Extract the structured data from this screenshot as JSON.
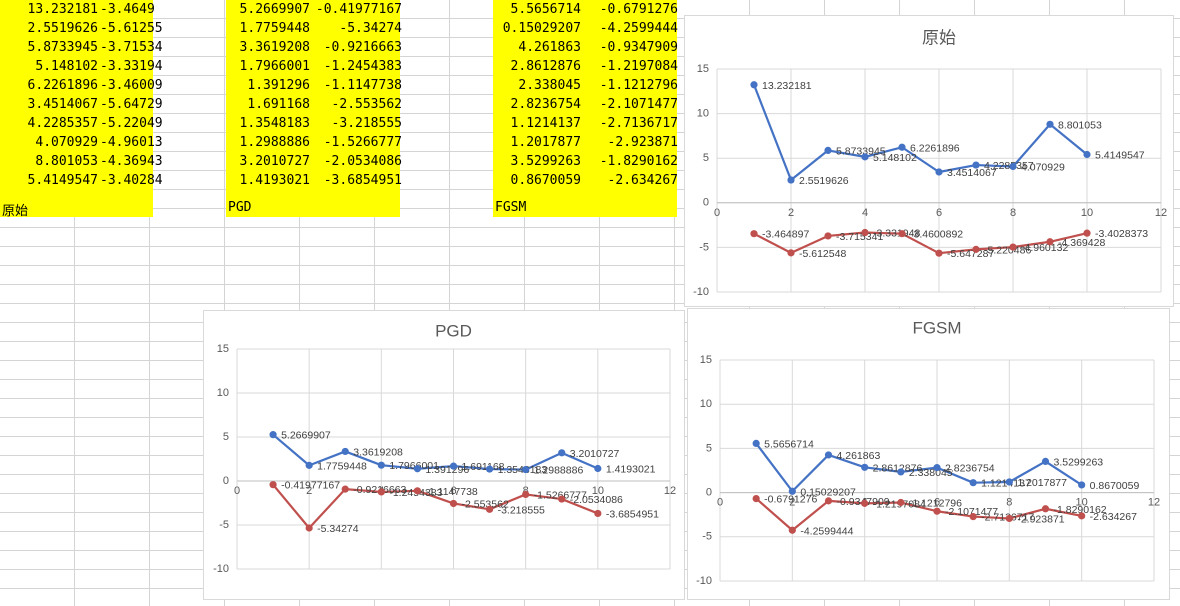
{
  "sheets": {
    "orig": {
      "label": "原始",
      "col1": [
        "13.232181",
        "2.5519626",
        "5.8733945",
        "5.148102",
        "6.2261896",
        "3.4514067",
        "4.2285357",
        "4.070929",
        "8.801053",
        "5.4149547"
      ],
      "col2": [
        "-3.4649",
        "-5.61255",
        "-3.71534",
        "-3.33194",
        "-3.46009",
        "-5.64729",
        "-5.22049",
        "-4.96013",
        "-4.36943",
        "-3.40284"
      ]
    },
    "pgd": {
      "label": "PGD",
      "col1": [
        "5.2669907",
        "1.7759448",
        "3.3619208",
        "1.7966001",
        "1.391296",
        "1.691168",
        "1.3548183",
        "1.2988886",
        "3.2010727",
        "1.4193021"
      ],
      "col2": [
        "-0.41977167",
        "-5.34274",
        "-0.9216663",
        "-1.2454383",
        "-1.1147738",
        "-2.553562",
        "-3.218555",
        "-1.5266777",
        "-2.0534086",
        "-3.6854951"
      ]
    },
    "fgsm": {
      "label": "FGSM",
      "col1": [
        "5.5656714",
        "0.15029207",
        "4.261863",
        "2.8612876",
        "2.338045",
        "2.8236754",
        "1.1214137",
        "1.2017877",
        "3.5299263",
        "0.8670059"
      ],
      "col2": [
        "-0.6791276",
        "-4.2599444",
        "-0.9347909",
        "-1.2197084",
        "-1.1212796",
        "-2.1071477",
        "-2.7136717",
        "-2.923871",
        "-1.8290162",
        "-2.634267"
      ]
    }
  },
  "chart_data": [
    {
      "type": "line",
      "title": "原始",
      "x": [
        1,
        2,
        3,
        4,
        5,
        6,
        7,
        8,
        9,
        10
      ],
      "xlim": [
        0,
        12
      ],
      "ylim": [
        -10,
        15
      ],
      "xticks": [
        "0",
        "2",
        "4",
        "6",
        "8",
        "10",
        "12"
      ],
      "yticks": [
        "15",
        "10",
        "5",
        "0",
        "-5",
        "-10"
      ],
      "series": [
        {
          "color": "#4472c4",
          "values": [
            13.232181,
            2.5519626,
            5.8733945,
            5.148102,
            6.2261896,
            3.4514067,
            4.2285357,
            4.070929,
            8.801053,
            5.4149547
          ],
          "labels": [
            "13.232181",
            "2.5519626",
            "5.8733945",
            "5.148102",
            "6.2261896",
            "3.4514067",
            "4.2285357",
            "4.070929",
            "8.801053",
            "5.4149547"
          ]
        },
        {
          "color": "#c0504d",
          "values": [
            -3.464897,
            -5.612548,
            -3.715341,
            -3.331948,
            -3.4600892,
            -5.647287,
            -5.220486,
            -4.960132,
            -4.369428,
            -3.4028373
          ],
          "labels": [
            "-3.464897",
            "-5.612548",
            "-3.715341",
            "-3.331948",
            "-3.4600892",
            "-5.647287",
            "-5.220486",
            "-4.960132",
            "-4.369428",
            "-3.4028373"
          ]
        }
      ]
    },
    {
      "type": "line",
      "title": "PGD",
      "x": [
        1,
        2,
        3,
        4,
        5,
        6,
        7,
        8,
        9,
        10
      ],
      "xlim": [
        0,
        12
      ],
      "ylim": [
        -10,
        15
      ],
      "xticks": [
        "0",
        "2",
        "4",
        "6",
        "8",
        "10",
        "12"
      ],
      "yticks": [
        "15",
        "10",
        "5",
        "0",
        "-5",
        "-10"
      ],
      "series": [
        {
          "color": "#4472c4",
          "values": [
            5.2669907,
            1.7759448,
            3.3619208,
            1.7966001,
            1.391296,
            1.691168,
            1.3548183,
            1.2988886,
            3.2010727,
            1.4193021
          ],
          "labels": [
            "5.2669907",
            "1.7759448",
            "3.3619208",
            "1.7966001",
            "1.391296",
            "1.691168",
            "1.3548183",
            "1.2988886",
            "3.2010727",
            "1.4193021"
          ]
        },
        {
          "color": "#c0504d",
          "values": [
            -0.41977167,
            -5.34274,
            -0.9216663,
            -1.2454383,
            -1.1147738,
            -2.553562,
            -3.218555,
            -1.5266777,
            -2.0534086,
            -3.6854951
          ],
          "labels": [
            "-0.41977167",
            "-5.34274",
            "-0.9216663",
            "-1.2454383",
            "-1.1147738",
            "-2.553562",
            "-3.218555",
            "-1.5266777",
            "-2.0534086",
            "-3.6854951"
          ]
        }
      ]
    },
    {
      "type": "line",
      "title": "FGSM",
      "x": [
        1,
        2,
        3,
        4,
        5,
        6,
        7,
        8,
        9,
        10
      ],
      "xlim": [
        0,
        12
      ],
      "ylim": [
        -10,
        15
      ],
      "xticks": [
        "0",
        "2",
        "4",
        "6",
        "8",
        "10",
        "12"
      ],
      "yticks": [
        "15",
        "10",
        "5",
        "0",
        "-5",
        "-10"
      ],
      "series": [
        {
          "color": "#4472c4",
          "values": [
            5.5656714,
            0.15029207,
            4.261863,
            2.8612876,
            2.338045,
            2.8236754,
            1.1214137,
            1.2017877,
            3.5299263,
            0.8670059
          ],
          "labels": [
            "5.5656714",
            "0.15029207",
            "4.261863",
            "2.8612876",
            "2.338045",
            "2.8236754",
            "1.1214137",
            "1.2017877",
            "3.5299263",
            "0.8670059"
          ]
        },
        {
          "color": "#c0504d",
          "values": [
            -0.6791276,
            -4.2599444,
            -0.9347909,
            -1.2197084,
            -1.1212796,
            -2.1071477,
            -2.7136717,
            -2.923871,
            -1.8290162,
            -2.634267
          ],
          "labels": [
            "-0.6791276",
            "-4.2599444",
            "-0.9347909",
            "-1.2197084",
            "-1.1212796",
            "-2.1071477",
            "-2.7136717",
            "-2.923871",
            "-1.8290162",
            "-2.634267"
          ]
        }
      ]
    }
  ]
}
